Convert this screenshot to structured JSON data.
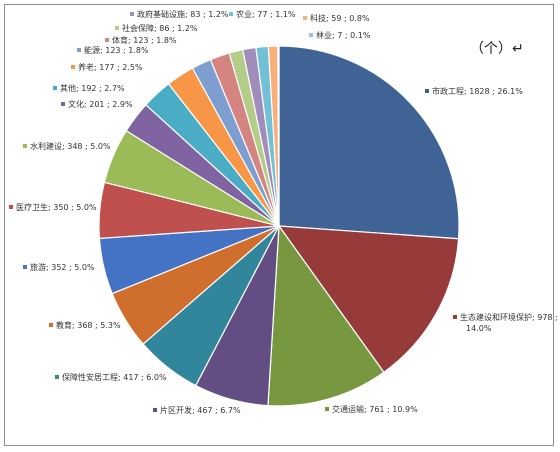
{
  "chart_data": {
    "type": "pie",
    "unit_label": "（个）↵",
    "slices": [
      {
        "label": "市政工程",
        "text": "市政工程; 1828 ; 26.1%",
        "value": 1828,
        "percent": 26.1,
        "color": "#3f6395"
      },
      {
        "label": "生态建设和环境保护",
        "text": "生态建设和环境保护; 978 ;",
        "text2": "14.0%",
        "value": 978,
        "percent": 14.0,
        "color": "#963a3a"
      },
      {
        "label": "交通运输",
        "text": "交通运输; 761 ; 10.9%",
        "value": 761,
        "percent": 10.9,
        "color": "#789840"
      },
      {
        "label": "片区开发",
        "text": "片区开发; 467 ; 6.7%",
        "value": 467,
        "percent": 6.7,
        "color": "#624e82"
      },
      {
        "label": "保障性安居工程",
        "text": "保障性安居工程; 417 ; 6.0%",
        "value": 417,
        "percent": 6.0,
        "color": "#31869b"
      },
      {
        "label": "教育",
        "text": "教育; 368 ; 5.3%",
        "value": 368,
        "percent": 5.3,
        "color": "#d06e2e"
      },
      {
        "label": "旅游",
        "text": "旅游; 352 ; 5.0%",
        "value": 352,
        "percent": 5.0,
        "color": "#4472c4"
      },
      {
        "label": "医疗卫生",
        "text": "医疗卫生; 350 ; 5.0%",
        "value": 350,
        "percent": 5.0,
        "color": "#c0504d"
      },
      {
        "label": "水利建设",
        "text": "水利建设; 348 ; 5.0%",
        "value": 348,
        "percent": 5.0,
        "color": "#9bbb59"
      },
      {
        "label": "文化",
        "text": "文化; 201 ; 2.9%",
        "value": 201,
        "percent": 2.9,
        "color": "#8064a2"
      },
      {
        "label": "其他",
        "text": "其他; 192 ; 2.7%",
        "value": 192,
        "percent": 2.7,
        "color": "#4bacc6"
      },
      {
        "label": "养老",
        "text": "养老; 177 ; 2.5%",
        "value": 177,
        "percent": 2.5,
        "color": "#f79646"
      },
      {
        "label": "能源",
        "text": "能源; 123 ; 1.8%",
        "value": 123,
        "percent": 1.8,
        "color": "#7f9ed0"
      },
      {
        "label": "体育",
        "text": "体育; 123 ; 1.8%",
        "value": 123,
        "percent": 1.8,
        "color": "#d48481"
      },
      {
        "label": "社会保障",
        "text": "社会保障; 86 ; 1.2%",
        "value": 86,
        "percent": 1.2,
        "color": "#b3cc88"
      },
      {
        "label": "政府基础设施",
        "text": "政府基础设施; 83 ; 1.2%",
        "value": 83,
        "percent": 1.2,
        "color": "#a08dbb"
      },
      {
        "label": "农业",
        "text": "农业; 77 ; 1.1%",
        "value": 77,
        "percent": 1.1,
        "color": "#72c0d5"
      },
      {
        "label": "科技",
        "text": "科技; 59 ; 0.8%",
        "value": 59,
        "percent": 0.8,
        "color": "#f9af79"
      },
      {
        "label": "林业",
        "text": "林业; 7 ; 0.1%",
        "value": 7,
        "percent": 0.1,
        "color": "#a6bddf"
      }
    ]
  }
}
